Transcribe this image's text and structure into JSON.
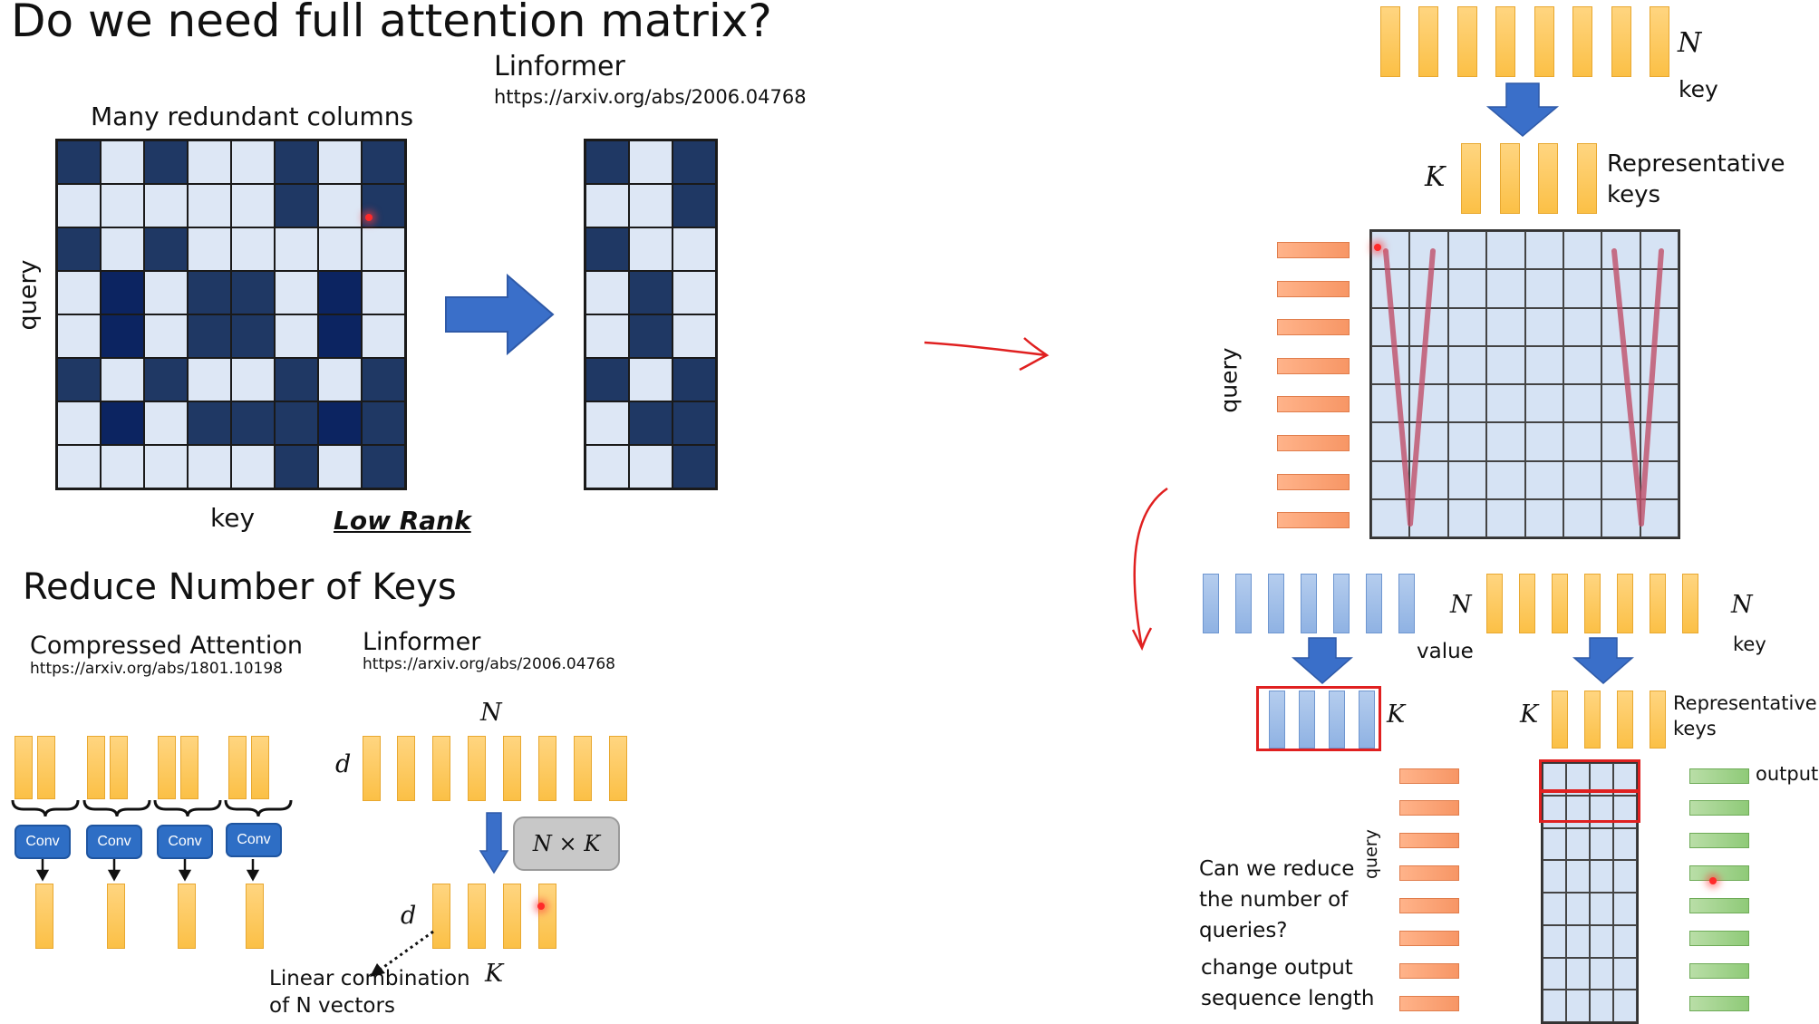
{
  "panel_tl": {
    "title": "Do we need full attention matrix?",
    "linformer_title": "Linformer",
    "linformer_url": "https://arxiv.org/abs/2006.04768",
    "matrix_caption": "Many redundant columns",
    "y_label": "query",
    "x_label": "key",
    "low_rank_label": "Low Rank"
  },
  "panel_bl": {
    "title": "Reduce Number of Keys",
    "compressed_title": "Compressed Attention",
    "compressed_url": "https://arxiv.org/abs/1801.10198",
    "linformer_title": "Linformer",
    "linformer_url": "https://arxiv.org/abs/2006.04768",
    "conv_label": "Conv",
    "n_label": "N",
    "d_label": "d",
    "d_label_2": "d",
    "nxk_label": "N × K",
    "k_label": "K",
    "linear_combination_line1": "Linear combination",
    "linear_combination_line2": "of N vectors"
  },
  "panel_r": {
    "n_label": "N",
    "key_label": "key",
    "k_label": "K",
    "representative_keys_line1": "Representative",
    "representative_keys_line2": "keys",
    "query_label": "query"
  },
  "panel_br": {
    "n_value_label": "N",
    "value_label": "value",
    "n_key_label": "N",
    "key_label": "key",
    "k_value_label": "K",
    "k_key_label": "K",
    "representative_keys_line1": "Representative",
    "representative_keys_line2": "keys",
    "output_label": "output",
    "query_label": "query",
    "question_line1": "Can we reduce",
    "question_line2": "the number of",
    "question_line3": "queries?",
    "change_line1": "change output",
    "change_line2": "sequence length"
  },
  "colors": {
    "dark_cell": "#1f3864",
    "light_cell": "#dde7f5",
    "key_bar": "#fbc046",
    "value_bar": "#8fb2e3",
    "query_bar": "#f79665",
    "output_bar": "#8fca78",
    "arrow_blue": "#3a6fc9",
    "highlight_red": "#e02020"
  },
  "matrix_left": {
    "rows": [
      [
        "d",
        "l",
        "d",
        "l",
        "l",
        "d",
        "l",
        "d"
      ],
      [
        "l",
        "l",
        "l",
        "l",
        "l",
        "d",
        "l",
        "d"
      ],
      [
        "d",
        "l",
        "d",
        "l",
        "l",
        "l",
        "l",
        "l"
      ],
      [
        "l",
        "D",
        "l",
        "d",
        "d",
        "l",
        "D",
        "l"
      ],
      [
        "l",
        "D",
        "l",
        "d",
        "d",
        "l",
        "D",
        "l"
      ],
      [
        "d",
        "l",
        "d",
        "l",
        "l",
        "d",
        "l",
        "d"
      ],
      [
        "l",
        "D",
        "l",
        "d",
        "d",
        "d",
        "D",
        "d"
      ],
      [
        "l",
        "l",
        "l",
        "l",
        "l",
        "d",
        "l",
        "d"
      ]
    ]
  },
  "matrix_right": {
    "rows": [
      [
        "d",
        "l",
        "d"
      ],
      [
        "l",
        "l",
        "d"
      ],
      [
        "d",
        "l",
        "l"
      ],
      [
        "l",
        "d",
        "l"
      ],
      [
        "l",
        "d",
        "l"
      ],
      [
        "d",
        "l",
        "d"
      ],
      [
        "l",
        "d",
        "d"
      ],
      [
        "l",
        "l",
        "d"
      ]
    ]
  }
}
